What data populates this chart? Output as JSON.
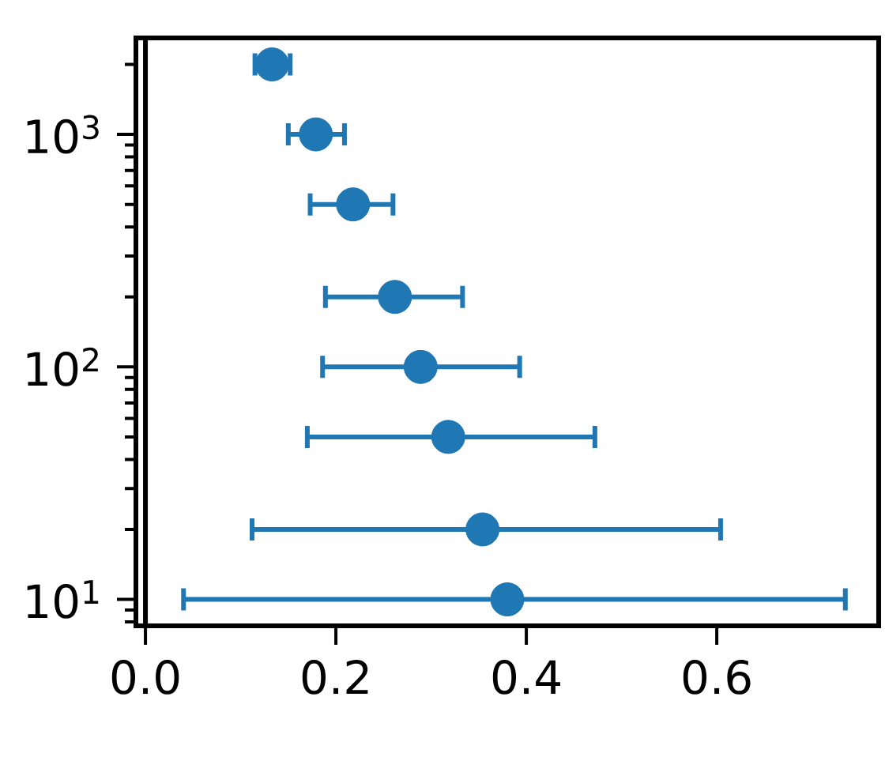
{
  "chart_data": {
    "type": "scatter",
    "x": [
      0.133,
      0.179,
      0.218,
      0.262,
      0.289,
      0.318,
      0.354,
      0.38
    ],
    "values": [
      2000,
      1000,
      500,
      200,
      100,
      50,
      20,
      10
    ],
    "xerrors": [
      [
        0.115,
        0.152
      ],
      [
        0.15,
        0.209
      ],
      [
        0.173,
        0.26
      ],
      [
        0.189,
        0.333
      ],
      [
        0.186,
        0.393
      ],
      [
        0.17,
        0.472
      ],
      [
        0.112,
        0.604
      ],
      [
        0.04,
        0.735
      ]
    ],
    "color": "#1f77b4",
    "marker": "circle",
    "log": "y",
    "xlim": [
      -0.01,
      0.77
    ],
    "ylim": [
      7.7,
      2600
    ],
    "xticks": [
      {
        "value": 0,
        "label": "0.0"
      },
      0.2,
      0.4,
      0.6
    ],
    "yticks": [
      {
        "value": 10,
        "label": "10$^{1}$"
      },
      {
        "value": 100,
        "label": "10$^{2}$"
      },
      {
        "value": 1000,
        "label": "10$^{3}$"
      }
    ],
    "ref_lines": [
      {
        "axis": "x",
        "value": 0,
        "color": "#000000"
      }
    ]
  }
}
